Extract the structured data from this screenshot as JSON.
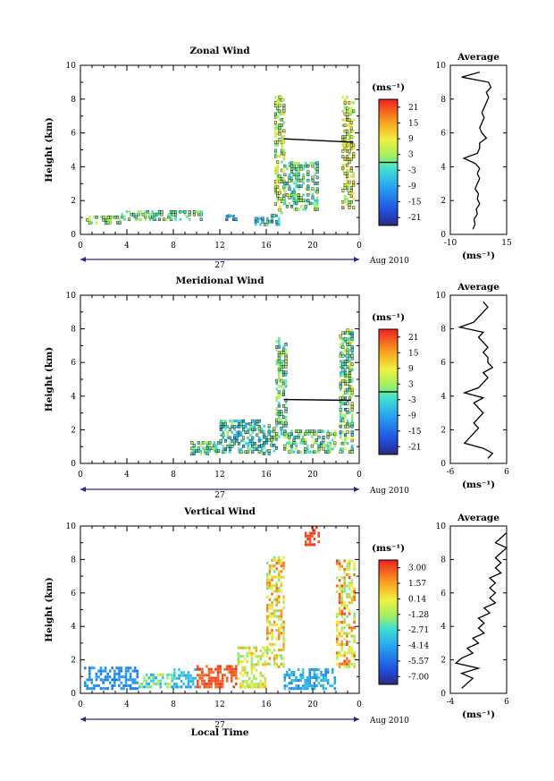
{
  "figure": {
    "xlabel": "Local Time",
    "date_label": "Aug 2010",
    "date_day": "27"
  },
  "chart_data": [
    {
      "type": "heatmap",
      "title": "Zonal Wind",
      "xlabel": "",
      "ylabel": "Height (km)",
      "x_ticks": [
        "0",
        "4",
        "8",
        "12",
        "16",
        "20",
        "0"
      ],
      "x_range_hours": [
        0,
        24
      ],
      "ylim": [
        0,
        10
      ],
      "y_ticks": [
        0,
        2,
        4,
        6,
        8,
        10
      ],
      "colorbar": {
        "unit": "(ms⁻¹)",
        "tick_labels": [
          "21",
          "15",
          "9",
          "3",
          "-3",
          "-9",
          "-15",
          "-21"
        ],
        "range": [
          -24,
          24
        ],
        "marker_line_value": 0
      },
      "profile": {
        "title": "Average",
        "xlabel": "(ms⁻¹)",
        "x_ticks": [
          "-10",
          "15"
        ],
        "xlim": [
          -10,
          15
        ],
        "ylim": [
          0,
          10
        ],
        "y_ticks": [
          0,
          2,
          4,
          6,
          8,
          10
        ],
        "heights": [
          0.3,
          0.6,
          0.9,
          1.2,
          1.5,
          1.8,
          2.1,
          2.4,
          2.7,
          3.0,
          3.3,
          3.6,
          3.9,
          4.2,
          4.5,
          4.8,
          5.1,
          5.4,
          5.7,
          6.0,
          6.3,
          6.6,
          6.9,
          7.2,
          7.5,
          7.8,
          8.1,
          8.4,
          8.7,
          9.0,
          9.3,
          9.6
        ],
        "values": [
          0,
          1,
          0.5,
          2,
          1.5,
          3,
          2,
          2.5,
          1,
          2,
          3,
          2,
          3,
          1,
          -4,
          2,
          3,
          3,
          6,
          4,
          3,
          4,
          5,
          4,
          5,
          6,
          7,
          6,
          8,
          7,
          -5,
          3
        ]
      },
      "segment": {
        "from": [
          17.5,
          5.65
        ],
        "to": [
          23.5,
          5.45
        ]
      },
      "data_clusters": [
        {
          "t": [
            0.5,
            3.5
          ],
          "h": [
            0.6,
            1.1
          ],
          "v": [
            -2,
            6
          ]
        },
        {
          "t": [
            3.5,
            10.5
          ],
          "h": [
            0.8,
            1.4
          ],
          "v": [
            -3,
            4
          ]
        },
        {
          "t": [
            12.5,
            13.5
          ],
          "h": [
            0.8,
            1.2
          ],
          "v": [
            -12,
            -4
          ]
        },
        {
          "t": [
            15.0,
            17.2
          ],
          "h": [
            0.5,
            1.2
          ],
          "v": [
            -10,
            2
          ]
        },
        {
          "t": [
            16.7,
            17.6
          ],
          "h": [
            1.2,
            8.2
          ],
          "v": [
            -2,
            12
          ]
        },
        {
          "t": [
            17.5,
            20.5
          ],
          "h": [
            1.4,
            4.3
          ],
          "v": [
            -6,
            6
          ]
        },
        {
          "t": [
            22.5,
            23.6
          ],
          "h": [
            1.5,
            8.2
          ],
          "v": [
            0,
            14
          ]
        }
      ]
    },
    {
      "type": "heatmap",
      "title": "Meridional Wind",
      "xlabel": "",
      "ylabel": "Height (km)",
      "x_ticks": [
        "0",
        "4",
        "8",
        "12",
        "16",
        "20",
        "0"
      ],
      "x_range_hours": [
        0,
        24
      ],
      "ylim": [
        0,
        10
      ],
      "y_ticks": [
        0,
        2,
        4,
        6,
        8,
        10
      ],
      "colorbar": {
        "unit": "(ms⁻¹)",
        "tick_labels": [
          "21",
          "15",
          "9",
          "3",
          "-3",
          "-9",
          "-15",
          "-21"
        ],
        "range": [
          -24,
          24
        ],
        "marker_line_value": 0
      },
      "profile": {
        "title": "Average",
        "xlabel": "(ms⁻¹)",
        "x_ticks": [
          "-6",
          "6"
        ],
        "xlim": [
          -6,
          6
        ],
        "ylim": [
          0,
          10
        ],
        "y_ticks": [
          0,
          2,
          4,
          6,
          8,
          10
        ],
        "heights": [
          0.3,
          0.6,
          0.9,
          1.2,
          1.5,
          1.8,
          2.1,
          2.4,
          2.7,
          3.0,
          3.3,
          3.6,
          3.9,
          4.2,
          4.5,
          4.8,
          5.1,
          5.4,
          5.7,
          6.0,
          6.3,
          6.6,
          6.9,
          7.2,
          7.5,
          7.8,
          8.1,
          8.4,
          8.7,
          9.0,
          9.3,
          9.6
        ],
        "values": [
          2,
          3,
          1,
          -3,
          -2,
          -1,
          0,
          -1,
          0,
          1,
          0,
          -1,
          1,
          -3,
          0,
          1,
          2,
          1,
          3,
          2,
          2,
          1,
          2,
          1,
          0,
          1,
          -4,
          -1,
          0,
          1,
          2,
          1
        ]
      },
      "segment": {
        "from": [
          17.5,
          3.8
        ],
        "to": [
          23.3,
          3.75
        ]
      },
      "data_clusters": [
        {
          "t": [
            9.5,
            12.0
          ],
          "h": [
            0.5,
            1.3
          ],
          "v": [
            -6,
            6
          ]
        },
        {
          "t": [
            12.0,
            15.5
          ],
          "h": [
            0.6,
            2.6
          ],
          "v": [
            -10,
            3
          ]
        },
        {
          "t": [
            15.3,
            17.0
          ],
          "h": [
            0.5,
            2.3
          ],
          "v": [
            -8,
            6
          ]
        },
        {
          "t": [
            16.8,
            17.8
          ],
          "h": [
            1.5,
            7.5
          ],
          "v": [
            -6,
            6
          ]
        },
        {
          "t": [
            17.5,
            22.0
          ],
          "h": [
            0.6,
            2.0
          ],
          "v": [
            -6,
            8
          ]
        },
        {
          "t": [
            22.3,
            23.5
          ],
          "h": [
            0.6,
            8.0
          ],
          "v": [
            -8,
            10
          ]
        }
      ]
    },
    {
      "type": "heatmap",
      "title": "Vertical Wind",
      "xlabel": "Local Time",
      "ylabel": "Height (km)",
      "x_ticks": [
        "0",
        "4",
        "8",
        "12",
        "16",
        "20",
        "0"
      ],
      "x_range_hours": [
        0,
        24
      ],
      "ylim": [
        0,
        10
      ],
      "y_ticks": [
        0,
        2,
        4,
        6,
        8,
        10
      ],
      "colorbar": {
        "unit": "(ms⁻¹)",
        "tick_labels": [
          "3.00",
          "1.57",
          "0.14",
          "-1.28",
          "-2.71",
          "-4.14",
          "-5.57",
          "-7.00"
        ],
        "range": [
          -7.7,
          3.7
        ],
        "marker_line_value": null
      },
      "profile": {
        "title": "Average",
        "xlabel": "(ms⁻¹)",
        "x_ticks": [
          "-4",
          "6"
        ],
        "xlim": [
          -4,
          6
        ],
        "ylim": [
          0,
          10
        ],
        "y_ticks": [
          0,
          2,
          4,
          6,
          8,
          10
        ],
        "heights": [
          0.3,
          0.6,
          0.9,
          1.2,
          1.5,
          1.8,
          2.1,
          2.4,
          2.7,
          3.0,
          3.3,
          3.6,
          3.9,
          4.2,
          4.5,
          4.8,
          5.1,
          5.4,
          5.7,
          6.0,
          6.3,
          6.6,
          6.9,
          7.2,
          7.5,
          7.8,
          8.1,
          8.4,
          8.7,
          9.0,
          9.3,
          9.6
        ],
        "values": [
          -2,
          -1,
          0,
          -2,
          1,
          -3,
          -2,
          0,
          -1,
          1,
          0,
          2,
          1,
          2,
          1,
          3,
          2,
          4,
          3,
          4,
          3,
          4,
          3,
          5,
          4,
          5,
          4,
          5,
          6,
          4,
          5,
          6
        ]
      },
      "segment": null,
      "data_clusters": [
        {
          "t": [
            0.3,
            5.0
          ],
          "h": [
            0.2,
            1.6
          ],
          "v": [
            -5.5,
            -4.0
          ]
        },
        {
          "t": [
            5.0,
            8.0
          ],
          "h": [
            0.3,
            1.2
          ],
          "v": [
            -4.5,
            0.5
          ]
        },
        {
          "t": [
            8.0,
            10.0
          ],
          "h": [
            0.3,
            1.5
          ],
          "v": [
            -5.0,
            -2.5
          ]
        },
        {
          "t": [
            10.0,
            13.5
          ],
          "h": [
            0.3,
            1.7
          ],
          "v": [
            2.3,
            3.4
          ]
        },
        {
          "t": [
            13.5,
            16.0
          ],
          "h": [
            0.3,
            2.8
          ],
          "v": [
            -2.0,
            1.5
          ]
        },
        {
          "t": [
            16.0,
            17.6
          ],
          "h": [
            1.5,
            8.2
          ],
          "v": [
            -2.0,
            2.5
          ]
        },
        {
          "t": [
            17.5,
            22.0
          ],
          "h": [
            0.2,
            1.5
          ],
          "v": [
            -5.0,
            -3.0
          ]
        },
        {
          "t": [
            19.3,
            20.6
          ],
          "h": [
            8.8,
            10.0
          ],
          "v": [
            2.8,
            3.4
          ]
        },
        {
          "t": [
            22.0,
            23.7
          ],
          "h": [
            1.5,
            8.0
          ],
          "v": [
            -2.0,
            3.2
          ]
        }
      ]
    }
  ]
}
